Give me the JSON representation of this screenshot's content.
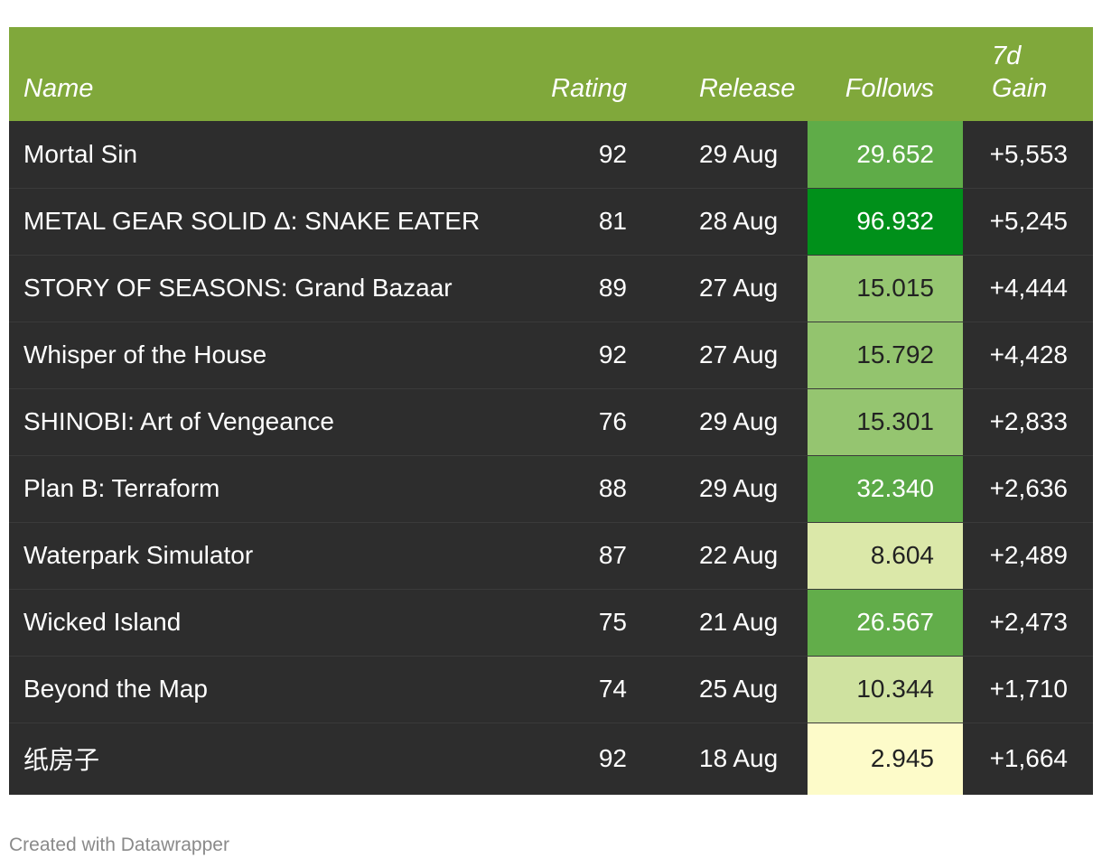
{
  "chart_data": {
    "type": "table",
    "columns": [
      "Name",
      "Rating",
      "Release",
      "Follows",
      "7d\nGain"
    ],
    "rows": [
      {
        "name": "Mortal Sin",
        "rating": "92",
        "release": "29 Aug",
        "follows": "29.652",
        "gain": "+5,553",
        "follows_color": "#5fac48",
        "follows_text": "#ffffff"
      },
      {
        "name": "METAL GEAR SOLID Δ: SNAKE EATER",
        "rating": "81",
        "release": "28 Aug",
        "follows": "96.932",
        "gain": "+5,245",
        "follows_color": "#00901a",
        "follows_text": "#ffffff"
      },
      {
        "name": "STORY OF SEASONS: Grand Bazaar",
        "rating": "89",
        "release": "27 Aug",
        "follows": "15.015",
        "gain": "+4,444",
        "follows_color": "#96c671",
        "follows_text": "#222222"
      },
      {
        "name": "Whisper of the House",
        "rating": "92",
        "release": "27 Aug",
        "follows": "15.792",
        "gain": "+4,428",
        "follows_color": "#93c46e",
        "follows_text": "#222222"
      },
      {
        "name": "SHINOBI: Art of Vengeance",
        "rating": "76",
        "release": "29 Aug",
        "follows": "15.301",
        "gain": "+2,833",
        "follows_color": "#95c570",
        "follows_text": "#222222"
      },
      {
        "name": "Plan B: Terraform",
        "rating": "88",
        "release": "29 Aug",
        "follows": "32.340",
        "gain": "+2,636",
        "follows_color": "#5ba946",
        "follows_text": "#ffffff"
      },
      {
        "name": "Waterpark Simulator",
        "rating": "87",
        "release": "22 Aug",
        "follows": "8.604",
        "gain": "+2,489",
        "follows_color": "#dbe8a9",
        "follows_text": "#222222"
      },
      {
        "name": "Wicked Island",
        "rating": "75",
        "release": "21 Aug",
        "follows": "26.567",
        "gain": "+2,473",
        "follows_color": "#62ad4a",
        "follows_text": "#ffffff"
      },
      {
        "name": "Beyond the Map",
        "rating": "74",
        "release": "25 Aug",
        "follows": "10.344",
        "gain": "+1,710",
        "follows_color": "#cfe2a0",
        "follows_text": "#222222"
      },
      {
        "name": "纸房子",
        "rating": "92",
        "release": "18 Aug",
        "follows": "2.945",
        "gain": "+1,664",
        "follows_color": "#fdfbc9",
        "follows_text": "#222222"
      }
    ]
  },
  "header": {
    "name": "Name",
    "rating": "Rating",
    "release": "Release",
    "follows": "Follows",
    "gain": "7d\nGain"
  },
  "colors": {
    "header_bg": "#80a83b",
    "row_bg": "#2d2d2d"
  },
  "footer": "Created with Datawrapper"
}
